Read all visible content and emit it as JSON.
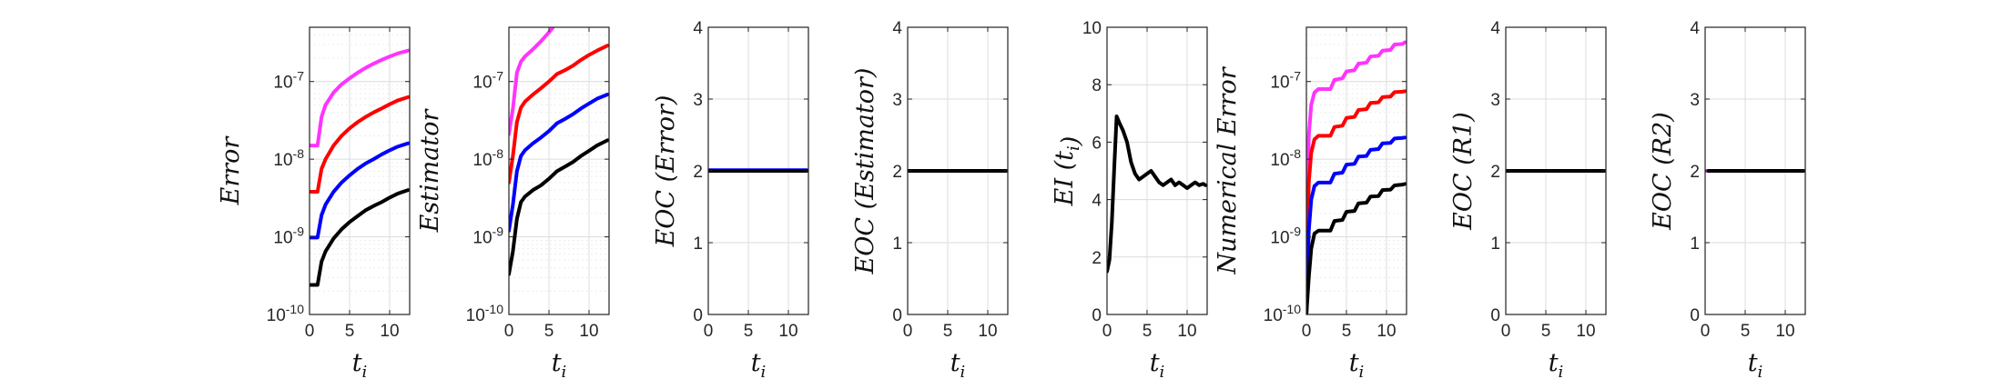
{
  "colors": {
    "magenta": "#ff33ff",
    "red": "#ff0000",
    "blue": "#0000ff",
    "black": "#000000"
  },
  "chart_data": [
    {
      "type": "line",
      "ylabel": "Error",
      "xlabel": "t_i",
      "yscale": "log",
      "xlim": [
        0,
        12.5
      ],
      "xticks": [
        "0",
        "5",
        "10"
      ],
      "ylim": [
        1e-10,
        5e-07
      ],
      "yticks": [
        "10-10",
        "10-9",
        "10-8",
        "10-7"
      ],
      "grid": true,
      "series": [
        {
          "color": "magenta",
          "x": [
            0,
            1,
            1.5,
            2,
            3,
            4,
            5,
            6,
            7,
            8,
            9,
            10,
            11,
            12.3
          ],
          "y": [
            1.5e-08,
            1.5e-08,
            3.5e-08,
            5e-08,
            7.2e-08,
            9.2e-08,
            1.1e-07,
            1.3e-07,
            1.5e-07,
            1.7e-07,
            1.9e-07,
            2.1e-07,
            2.3e-07,
            2.5e-07
          ]
        },
        {
          "color": "red",
          "x": [
            0,
            1,
            1.5,
            2,
            3,
            4,
            5,
            6,
            7,
            8,
            9,
            10,
            11,
            12.3
          ],
          "y": [
            3.8e-09,
            3.8e-09,
            7.5e-09,
            1e-08,
            1.5e-08,
            2e-08,
            2.5e-08,
            3e-08,
            3.5e-08,
            4e-08,
            4.5e-08,
            5.1e-08,
            5.7e-08,
            6.3e-08
          ]
        },
        {
          "color": "blue",
          "x": [
            0,
            1,
            1.5,
            2,
            3,
            4,
            5,
            6,
            7,
            8,
            9,
            10,
            11,
            12.3
          ],
          "y": [
            9.8e-10,
            9.8e-10,
            1.9e-09,
            2.6e-09,
            3.8e-09,
            5e-09,
            6.2e-09,
            7.5e-09,
            8.8e-09,
            1e-08,
            1.15e-08,
            1.3e-08,
            1.45e-08,
            1.6e-08
          ]
        },
        {
          "color": "black",
          "x": [
            0,
            1,
            1.5,
            2,
            3,
            4,
            5,
            6,
            7,
            8,
            9,
            10,
            11,
            12.3
          ],
          "y": [
            2.4e-10,
            2.4e-10,
            4.8e-10,
            6.5e-10,
            9.5e-10,
            1.25e-09,
            1.55e-09,
            1.85e-09,
            2.2e-09,
            2.5e-09,
            2.8e-09,
            3.2e-09,
            3.6e-09,
            4e-09
          ]
        }
      ]
    },
    {
      "type": "line",
      "ylabel": "Estimator",
      "xlabel": "t_i",
      "yscale": "log",
      "xlim": [
        0,
        12.5
      ],
      "xticks": [
        "0",
        "5",
        "10"
      ],
      "ylim": [
        1e-10,
        5e-07
      ],
      "yticks": [
        "10-10",
        "10-9",
        "10-8",
        "10-7"
      ],
      "grid": true,
      "series": [
        {
          "color": "magenta",
          "x": [
            0,
            0.5,
            1,
            1.5,
            2,
            3,
            4,
            5,
            5.5
          ],
          "y": [
            2.1e-08,
            4.5e-08,
            1.3e-07,
            1.8e-07,
            2.1e-07,
            2.6e-07,
            3.3e-07,
            4.3e-07,
            5e-07
          ]
        },
        {
          "color": "red",
          "x": [
            0,
            0.5,
            1,
            1.5,
            2,
            3,
            4,
            5,
            6,
            7,
            8,
            9,
            10,
            11,
            12.3
          ],
          "y": [
            5e-09,
            1.1e-08,
            3e-08,
            4.6e-08,
            5.5e-08,
            6.8e-08,
            8.2e-08,
            1e-07,
            1.25e-07,
            1.4e-07,
            1.6e-07,
            1.9e-07,
            2.2e-07,
            2.5e-07,
            2.9e-07
          ]
        },
        {
          "color": "blue",
          "x": [
            0,
            0.5,
            1,
            1.5,
            2,
            3,
            4,
            5,
            6,
            7,
            8,
            9,
            10,
            11,
            12.3
          ],
          "y": [
            1.2e-09,
            2.6e-09,
            7e-09,
            1.1e-08,
            1.3e-08,
            1.6e-08,
            1.9e-08,
            2.3e-08,
            2.9e-08,
            3.3e-08,
            3.8e-08,
            4.5e-08,
            5.2e-08,
            6e-08,
            6.8e-08
          ]
        },
        {
          "color": "black",
          "x": [
            0,
            0.5,
            1,
            1.5,
            2,
            3,
            4,
            5,
            6,
            7,
            8,
            9,
            10,
            11,
            12.3
          ],
          "y": [
            3.3e-10,
            6.5e-10,
            1.7e-09,
            2.8e-09,
            3.3e-09,
            4e-09,
            4.6e-09,
            5.6e-09,
            7e-09,
            8e-09,
            9.2e-09,
            1.1e-08,
            1.28e-08,
            1.5e-08,
            1.75e-08
          ]
        }
      ]
    },
    {
      "type": "line",
      "ylabel": "EOC (Error)",
      "xlabel": "t_i",
      "xlim": [
        0,
        12.5
      ],
      "ylim": [
        0,
        4
      ],
      "xticks": [
        "0",
        "5",
        "10"
      ],
      "yticks": [
        "0",
        "1",
        "2",
        "3",
        "4"
      ],
      "grid": true,
      "series": [
        {
          "color": "blue",
          "x": [
            0,
            12.3
          ],
          "y": [
            2.01,
            2.01
          ]
        },
        {
          "color": "black",
          "x": [
            0,
            12.3
          ],
          "y": [
            2,
            2
          ]
        }
      ]
    },
    {
      "type": "line",
      "ylabel": "EOC (Estimator)",
      "xlabel": "t_i",
      "xlim": [
        0,
        12.5
      ],
      "ylim": [
        0,
        4
      ],
      "xticks": [
        "0",
        "5",
        "10"
      ],
      "yticks": [
        "0",
        "1",
        "2",
        "3",
        "4"
      ],
      "grid": true,
      "series": [
        {
          "color": "black",
          "x": [
            0,
            12.3
          ],
          "y": [
            2,
            2
          ]
        }
      ]
    },
    {
      "type": "line",
      "ylabel": "EI (t_i)",
      "xlabel": "t_i",
      "xlim": [
        0,
        12.5
      ],
      "ylim": [
        0,
        10
      ],
      "xticks": [
        "0",
        "5",
        "10"
      ],
      "yticks": [
        "0",
        "2",
        "4",
        "6",
        "8",
        "10"
      ],
      "grid": true,
      "series": [
        {
          "color": "black",
          "x": [
            0,
            0.3,
            0.6,
            0.9,
            1.2,
            1.5,
            2,
            2.5,
            3,
            3.5,
            4,
            4.5,
            5,
            5.5,
            6,
            6.5,
            7,
            7.5,
            8,
            8.5,
            9,
            9.5,
            10,
            10.5,
            11,
            11.5,
            12,
            12.3
          ],
          "y": [
            1.5,
            1.9,
            3.2,
            5.1,
            6.9,
            6.7,
            6.4,
            6.0,
            5.3,
            4.9,
            4.7,
            4.8,
            4.9,
            5.0,
            4.8,
            4.6,
            4.5,
            4.6,
            4.7,
            4.5,
            4.6,
            4.5,
            4.4,
            4.5,
            4.6,
            4.5,
            4.55,
            4.5
          ]
        }
      ]
    },
    {
      "type": "line",
      "ylabel": "Numerical Error",
      "xlabel": "t_i",
      "yscale": "log",
      "xlim": [
        0,
        12.5
      ],
      "xticks": [
        "0",
        "5",
        "10"
      ],
      "ylim": [
        1e-10,
        5e-07
      ],
      "yticks": [
        "10-10",
        "10-9",
        "10-8",
        "10-7"
      ],
      "grid": true,
      "series": [
        {
          "color": "magenta",
          "x": [
            0,
            0.3,
            0.6,
            1,
            1.5,
            2,
            3,
            3.5,
            4.5,
            5,
            6,
            6.5,
            7.5,
            8,
            9,
            9.5,
            10.5,
            11,
            12,
            12.3
          ],
          "y": [
            1e-10,
            2e-08,
            5e-08,
            7.2e-08,
            8e-08,
            8e-08,
            8e-08,
            1.05e-07,
            1.1e-07,
            1.35e-07,
            1.4e-07,
            1.7e-07,
            1.75e-07,
            2.1e-07,
            2.15e-07,
            2.5e-07,
            2.55e-07,
            3e-07,
            3.05e-07,
            3.2e-07
          ]
        },
        {
          "color": "red",
          "x": [
            0,
            0.3,
            0.6,
            1,
            1.5,
            2,
            3,
            3.5,
            4.5,
            5,
            6,
            6.5,
            7.5,
            8,
            9,
            9.5,
            10.5,
            11,
            12,
            12.3
          ],
          "y": [
            1e-10,
            5e-09,
            1.2e-08,
            1.8e-08,
            2e-08,
            2e-08,
            2e-08,
            2.6e-08,
            2.7e-08,
            3.4e-08,
            3.5e-08,
            4.3e-08,
            4.4e-08,
            5.3e-08,
            5.4e-08,
            6.3e-08,
            6.4e-08,
            7.3e-08,
            7.4e-08,
            7.5e-08
          ]
        },
        {
          "color": "blue",
          "x": [
            0,
            0.3,
            0.6,
            1,
            1.5,
            2,
            3,
            3.5,
            4.5,
            5,
            6,
            6.5,
            7.5,
            8,
            9,
            9.5,
            10.5,
            11,
            12,
            12.3
          ],
          "y": [
            1e-10,
            1.2e-09,
            3e-09,
            4.5e-09,
            5e-09,
            5e-09,
            5e-09,
            6.5e-09,
            6.7e-09,
            8.5e-09,
            8.7e-09,
            1.08e-08,
            1.1e-08,
            1.32e-08,
            1.35e-08,
            1.6e-08,
            1.62e-08,
            1.85e-08,
            1.88e-08,
            1.9e-08
          ]
        },
        {
          "color": "black",
          "x": [
            0,
            0.3,
            0.6,
            1,
            1.5,
            2,
            3,
            3.5,
            4.5,
            5,
            6,
            6.5,
            7.5,
            8,
            9,
            9.5,
            10.5,
            11,
            12,
            12.3
          ],
          "y": [
            1e-10,
            3e-10,
            7e-10,
            1.1e-09,
            1.2e-09,
            1.2e-09,
            1.2e-09,
            1.6e-09,
            1.65e-09,
            2.1e-09,
            2.15e-09,
            2.7e-09,
            2.75e-09,
            3.3e-09,
            3.35e-09,
            4e-09,
            4.05e-09,
            4.6e-09,
            4.7e-09,
            4.8e-09
          ]
        }
      ]
    },
    {
      "type": "line",
      "ylabel": "EOC (R1)",
      "xlabel": "t_i",
      "xlim": [
        0,
        12.5
      ],
      "ylim": [
        0,
        4
      ],
      "xticks": [
        "0",
        "5",
        "10"
      ],
      "yticks": [
        "0",
        "1",
        "2",
        "3",
        "4"
      ],
      "grid": true,
      "series": [
        {
          "color": "black",
          "x": [
            0,
            12.3
          ],
          "y": [
            2,
            2
          ]
        }
      ]
    },
    {
      "type": "line",
      "ylabel": "EOC (R2)",
      "xlabel": "t_i",
      "xlim": [
        0,
        12.5
      ],
      "ylim": [
        0,
        4
      ],
      "xticks": [
        "0",
        "5",
        "10"
      ],
      "yticks": [
        "0",
        "1",
        "2",
        "3",
        "4"
      ],
      "grid": true,
      "series": [
        {
          "color": "magenta",
          "x": [
            0,
            0.6
          ],
          "y": [
            2,
            2
          ]
        },
        {
          "color": "black",
          "x": [
            0.4,
            12.3
          ],
          "y": [
            2,
            2
          ]
        }
      ]
    }
  ]
}
